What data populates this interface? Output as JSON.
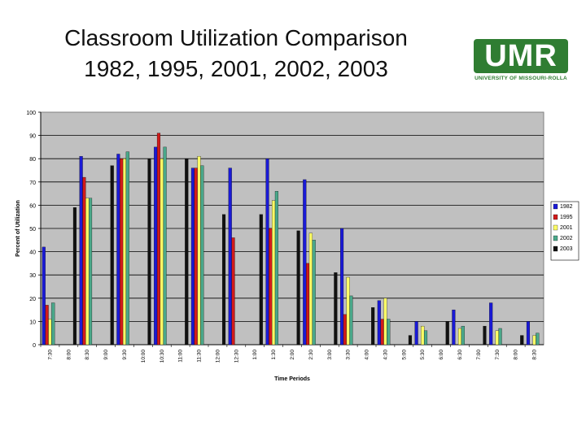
{
  "slide": {
    "title_line1": "Classroom Utilization Comparison",
    "title_line2": "1982, 1995, 2001, 2002, 2003",
    "logo_text": "UMR",
    "logo_subtext": "UNIVERSITY OF MISSOURI-ROLLA"
  },
  "colors": {
    "1982": "#1a1ad6",
    "1995": "#d11b1b",
    "2001": "#ffff66",
    "2002": "#4aa88a",
    "2003": "#111111",
    "plot_background": "#c0c0c0"
  },
  "chart_data": {
    "type": "bar",
    "title": "",
    "xlabel": "Time Periods",
    "ylabel": "Percent of Utilization",
    "ylim": [
      0,
      100
    ],
    "yticks": [
      0,
      10,
      20,
      30,
      40,
      50,
      60,
      70,
      80,
      90,
      100
    ],
    "grid": true,
    "legend_position": "right",
    "categories": [
      "7:30",
      "8:00",
      "8:30",
      "9:00",
      "9:30",
      "10:00",
      "10:30",
      "11:00",
      "11:30",
      "12:00",
      "12:30",
      "1:00",
      "1:30",
      "2:00",
      "2:30",
      "3:00",
      "3:30",
      "4:00",
      "4:30",
      "5:00",
      "5:30",
      "6:00",
      "6:30",
      "7:00",
      "7:30",
      "8:00",
      "8:30"
    ],
    "series": [
      {
        "name": "1982",
        "values": [
          42,
          0,
          81,
          0,
          82,
          0,
          85,
          0,
          76,
          0,
          76,
          0,
          80,
          0,
          71,
          0,
          50,
          0,
          19,
          0,
          10,
          0,
          15,
          0,
          18,
          0,
          10
        ]
      },
      {
        "name": "1995",
        "values": [
          17,
          0,
          72,
          0,
          80,
          0,
          91,
          0,
          76,
          0,
          46,
          0,
          50,
          0,
          35,
          0,
          13,
          0,
          11,
          0,
          0,
          0,
          0,
          0,
          0,
          0,
          0
        ]
      },
      {
        "name": "2001",
        "values": [
          11,
          0,
          63,
          0,
          80,
          0,
          80,
          0,
          81,
          0,
          0,
          0,
          62,
          0,
          48,
          0,
          29,
          0,
          20,
          0,
          8,
          0,
          7,
          0,
          6,
          0,
          4
        ]
      },
      {
        "name": "2002",
        "values": [
          18,
          0,
          63,
          0,
          83,
          0,
          85,
          0,
          77,
          0,
          0,
          0,
          66,
          0,
          45,
          0,
          21,
          0,
          11,
          0,
          6,
          0,
          8,
          0,
          7,
          0,
          5
        ]
      },
      {
        "name": "2003",
        "values": [
          0,
          59,
          0,
          77,
          0,
          80,
          0,
          80,
          0,
          56,
          0,
          56,
          0,
          49,
          0,
          31,
          0,
          16,
          0,
          4,
          0,
          10,
          0,
          8,
          0,
          4,
          0
        ]
      }
    ]
  }
}
